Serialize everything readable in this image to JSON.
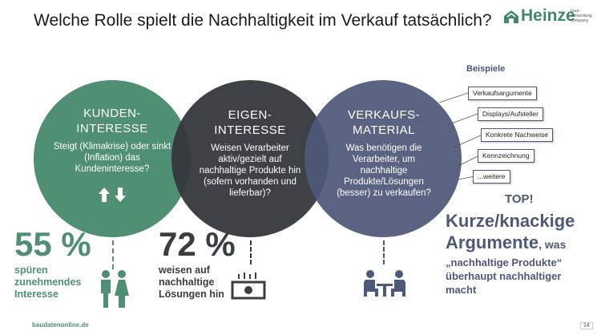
{
  "title": "Welche Rolle spielt die Nachhaltigkeit im Verkauf tatsächlich?",
  "logo": {
    "name": "Heinze",
    "tagline": "your networking company",
    "brand_color": "#3e8a68"
  },
  "circles": [
    {
      "heading_1": "KUNDEN-",
      "heading_2": "INTERESSE",
      "body": "Steigt (Klimakrise) oder sinkt (Inflation) das Kundeninteresse?",
      "color": "#4f8f73"
    },
    {
      "heading_1": "EIGEN-",
      "heading_2": "INTERESSE",
      "body": "Weisen Verarbeiter aktiv/gezielt auf nachhaltige Produkte hin (sofern vorhanden und lieferbar)?",
      "color": "#34373b"
    },
    {
      "heading_1": "VERKAUFS-",
      "heading_2": "MATERIAL",
      "body": "Was benötigen die Verarbeiter, um nachhaltige Produkte/Lösungen (besser) zu verkaufen?",
      "color": "#4e5878"
    }
  ],
  "examples": {
    "title": "Beispiele",
    "items": [
      "Verkaufsargumente",
      "Displays/Aufsteller",
      "Konkrete Nachweise",
      "Kennzeichnung",
      "...weitere"
    ]
  },
  "stats": [
    {
      "value": "55 %",
      "line1": "spüren",
      "line2": "zunehmendes",
      "line3": "Interesse"
    },
    {
      "value": "72 %",
      "line1": "weisen auf",
      "line2": "nachhaltige",
      "line3": "Lösungen hin"
    }
  ],
  "top": {
    "label": "TOP!",
    "line1": "Kurze/knackige",
    "line2_big": "Argumente",
    "line2_small": ", was",
    "line3": "„nachhaltige Produkte“",
    "line4": "überhaupt nachhaltiger",
    "line5": "macht"
  },
  "icons": [
    "arrows-up-down-icon",
    "couple-icon",
    "money-icon",
    "meeting-icon"
  ],
  "footer": "baudatenonline.de",
  "page_number": "14"
}
